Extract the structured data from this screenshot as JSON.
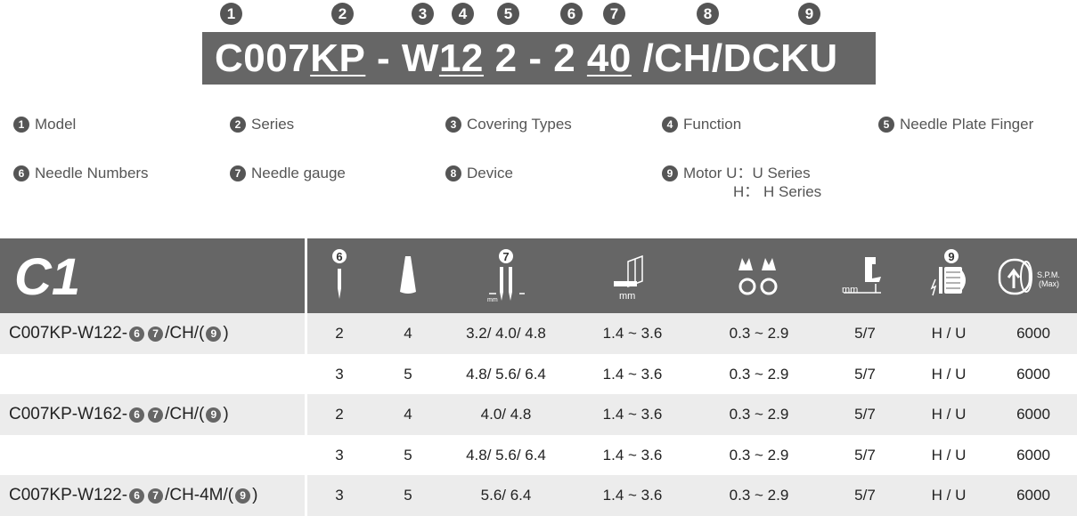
{
  "code": {
    "numbers": [
      "1",
      "2",
      "3",
      "4",
      "5",
      "6",
      "7",
      "8",
      "9"
    ],
    "parts": [
      {
        "t": "C007",
        "u": false
      },
      {
        "t": "KP",
        "u": true
      },
      {
        "t": " - W",
        "u": false
      },
      {
        "t": "12",
        "u": true
      },
      {
        "t": " 2 - 2 ",
        "u": false
      },
      {
        "t": "40",
        "u": true
      },
      {
        "t": " /CH/DCKU",
        "u": false
      }
    ]
  },
  "legend": [
    {
      "n": "1",
      "label": "Model"
    },
    {
      "n": "2",
      "label": "Series"
    },
    {
      "n": "3",
      "label": "Covering Types"
    },
    {
      "n": "4",
      "label": "Function"
    },
    {
      "n": "5",
      "label": "Needle Plate Finger"
    },
    {
      "n": "6",
      "label": "Needle Numbers"
    },
    {
      "n": "7",
      "label": "Needle gauge"
    },
    {
      "n": "8",
      "label": "Device"
    },
    {
      "n": "9",
      "label": "Motor U：U Series",
      "label2": "H： H  Series"
    }
  ],
  "table": {
    "title": "C1",
    "header_icons": [
      "needle-icon",
      "thread-cone-icon",
      "needle-gauge-icon",
      "stitch-length-icon",
      "differential-feed-icon",
      "presser-foot-lift-icon",
      "motor-icon",
      "speed-icon"
    ],
    "header_badges": {
      "needle": "6",
      "gauge": "7",
      "motor": "9"
    },
    "mm": "mm",
    "spm": "S.P.M.",
    "spm_max": "(Max)",
    "colors": {
      "header": "#666666",
      "alt_row": "#ececec"
    },
    "rows": [
      {
        "model": [
          "C007KP-W122-",
          "6",
          "7",
          "/CH/(",
          "9",
          ")"
        ],
        "cells": [
          "2",
          "4",
          "3.2/ 4.0/ 4.8",
          "1.4 ~ 3.6",
          "0.3 ~ 2.9",
          "5/7",
          "H / U",
          "6000"
        ]
      },
      {
        "model": null,
        "cells": [
          "3",
          "5",
          "4.8/ 5.6/ 6.4",
          "1.4 ~ 3.6",
          "0.3 ~ 2.9",
          "5/7",
          "H / U",
          "6000"
        ]
      },
      {
        "model": [
          "C007KP-W162-",
          "6",
          "7",
          "/CH/(",
          "9",
          ")"
        ],
        "cells": [
          "2",
          "4",
          "4.0/ 4.8",
          "1.4 ~ 3.6",
          "0.3 ~ 2.9",
          "5/7",
          "H / U",
          "6000"
        ]
      },
      {
        "model": null,
        "cells": [
          "3",
          "5",
          "4.8/ 5.6/ 6.4",
          "1.4 ~ 3.6",
          "0.3 ~ 2.9",
          "5/7",
          "H / U",
          "6000"
        ]
      },
      {
        "model": [
          "C007KP-W122-",
          "6",
          "7",
          "/CH-4M/(",
          "9",
          ")"
        ],
        "cells": [
          "3",
          "5",
          "5.6/ 6.4",
          "1.4 ~ 3.6",
          "0.3 ~ 2.9",
          "5/7",
          "H / U",
          "6000"
        ]
      }
    ]
  }
}
